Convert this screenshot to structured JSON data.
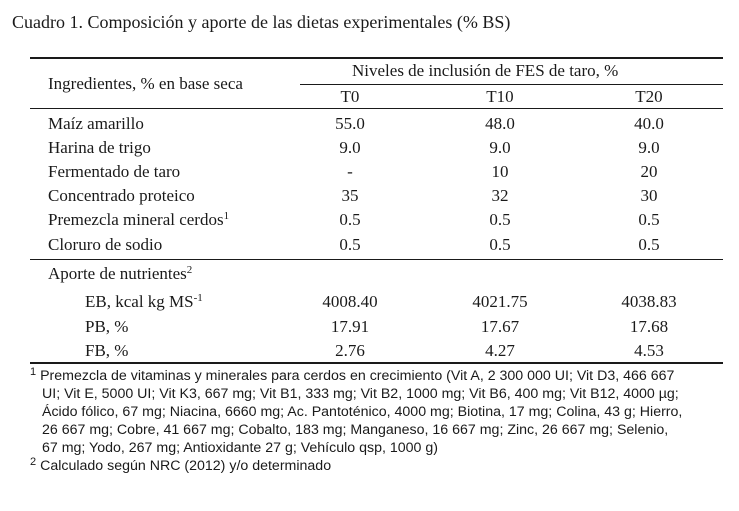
{
  "caption": "Cuadro 1.  Composición y aporte de las dietas experimentales (% BS)",
  "table": {
    "row_header": "Ingredientes, % en base seca",
    "group_header": "Niveles de inclusión de FES de taro, %",
    "columns": [
      "T0",
      "T10",
      "T20"
    ],
    "ingredients": [
      {
        "label": "Maíz amarillo",
        "sup": "",
        "values": [
          "55.0",
          "48.0",
          "40.0"
        ]
      },
      {
        "label": "Harina de trigo",
        "sup": "",
        "values": [
          "9.0",
          "9.0",
          "9.0"
        ]
      },
      {
        "label": "Fermentado de taro",
        "sup": "",
        "values": [
          "-",
          "10",
          "20"
        ]
      },
      {
        "label": "Concentrado proteico",
        "sup": "",
        "values": [
          "35",
          "32",
          "30"
        ]
      },
      {
        "label": "Premezcla mineral cerdos",
        "sup": "1",
        "values": [
          "0.5",
          "0.5",
          "0.5"
        ]
      },
      {
        "label": "Cloruro de sodio",
        "sup": "",
        "values": [
          "0.5",
          "0.5",
          "0.5"
        ]
      }
    ],
    "nutrients_header": "Aporte de nutrientes",
    "nutrients_header_sup": "2",
    "nutrients": [
      {
        "label": "EB, kcal kg MS",
        "sup": "-1",
        "values": [
          "4008.40",
          "4021.75",
          "4038.83"
        ]
      },
      {
        "label": "PB, %",
        "sup": "",
        "values": [
          "17.91",
          "17.67",
          "17.68"
        ]
      },
      {
        "label": "FB, %",
        "sup": "",
        "values": [
          "2.76",
          "4.27",
          "4.53"
        ]
      }
    ]
  },
  "footnotes": {
    "fn1_mark": "1",
    "fn1_lines": [
      "Premezcla de vitaminas y minerales para cerdos en crecimiento (Vit A, 2 300 000 UI; Vit D3, 466 667",
      "UI; Vit E, 5000 UI; Vit K3, 667 mg; Vit B1, 333 mg; Vit B2, 1000 mg; Vit B6, 400 mg; Vit B12, 4000 µg;",
      "Ácido fólico, 67 mg; Niacina, 6660 mg; Ac. Pantoténico, 4000 mg; Biotina, 17 mg; Colina, 43 g; Hierro,",
      "26 667 mg; Cobre, 41 667 mg; Cobalto, 183 mg; Manganeso, 16 667 mg; Zinc, 26 667 mg; Selenio,",
      "67 mg; Yodo, 267 mg; Antioxidante 27 g; Vehículo qsp, 1000 g)"
    ],
    "fn2_mark": "2",
    "fn2_text": "Calculado según NRC (2012) y/o determinado"
  }
}
